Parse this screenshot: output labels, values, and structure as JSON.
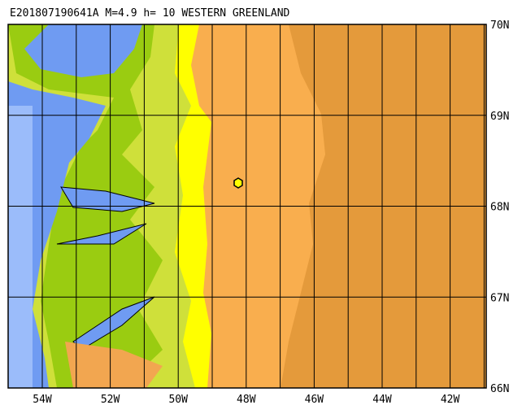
{
  "header": {
    "title": "E201807190641A M=4.9 h= 10 WESTERN GREENLAND"
  },
  "map": {
    "latitude_labels": [
      "70N",
      "69N",
      "68N",
      "67N",
      "66N"
    ],
    "longitude_labels": [
      "54W",
      "52W",
      "50W",
      "48W",
      "46W",
      "44W",
      "42W"
    ]
  }
}
